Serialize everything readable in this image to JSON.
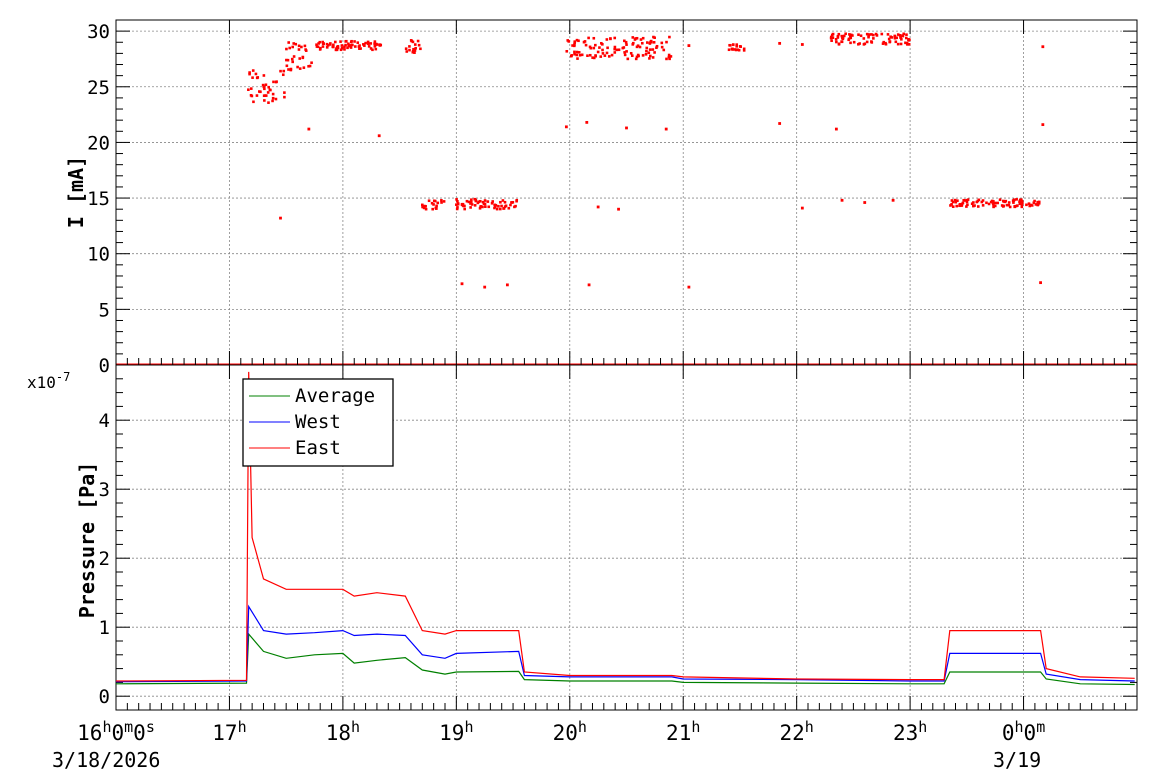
{
  "chart_data": [
    {
      "type": "scatter",
      "title": "",
      "ylabel": "I [mA]",
      "ylim": [
        0,
        31
      ],
      "yticks": [
        "0",
        "5",
        "10",
        "15",
        "20",
        "25",
        "30"
      ],
      "grid": true,
      "x_unit": "hours since 3/18/2026 16:00",
      "series": [
        {
          "color": "#ff0000",
          "description_clusters": [
            {
              "x_start": 17.15,
              "x_end": 17.5,
              "y_min": 23.5,
              "y_max": 26.5
            },
            {
              "x_start": 17.5,
              "x_end": 17.75,
              "y_min": 26.5,
              "y_max": 29
            },
            {
              "x_start": 17.75,
              "x_end": 18.35,
              "y_min": 28.3,
              "y_max": 29.1
            },
            {
              "x_start": 18.55,
              "x_end": 18.7,
              "y_min": 28.0,
              "y_max": 29.2
            },
            {
              "x_start": 18.7,
              "x_end": 18.9,
              "y_min": 14.0,
              "y_max": 14.8
            },
            {
              "x_start": 19.0,
              "x_end": 19.55,
              "y_min": 14.0,
              "y_max": 14.9
            },
            {
              "x_start": 19.95,
              "x_end": 20.9,
              "y_min": 27.5,
              "y_max": 29.5
            },
            {
              "x_start": 21.4,
              "x_end": 21.55,
              "y_min": 28.2,
              "y_max": 28.8
            },
            {
              "x_start": 22.3,
              "x_end": 23.0,
              "y_min": 28.8,
              "y_max": 29.8
            },
            {
              "x_start": 23.35,
              "x_end": 24.15,
              "y_min": 14.2,
              "y_max": 14.9
            }
          ],
          "isolated_points": [
            {
              "x": 17.45,
              "y": 13.2
            },
            {
              "x": 17.7,
              "y": 21.2
            },
            {
              "x": 18.32,
              "y": 20.6
            },
            {
              "x": 19.05,
              "y": 7.3
            },
            {
              "x": 19.25,
              "y": 7.0
            },
            {
              "x": 19.45,
              "y": 7.2
            },
            {
              "x": 19.97,
              "y": 21.4
            },
            {
              "x": 20.15,
              "y": 21.8
            },
            {
              "x": 20.17,
              "y": 7.2
            },
            {
              "x": 20.25,
              "y": 14.2
            },
            {
              "x": 20.43,
              "y": 14.0
            },
            {
              "x": 20.5,
              "y": 21.3
            },
            {
              "x": 20.85,
              "y": 21.2
            },
            {
              "x": 21.05,
              "y": 7.0
            },
            {
              "x": 21.05,
              "y": 28.7
            },
            {
              "x": 21.85,
              "y": 21.7
            },
            {
              "x": 21.85,
              "y": 28.9
            },
            {
              "x": 22.05,
              "y": 14.1
            },
            {
              "x": 22.05,
              "y": 28.8
            },
            {
              "x": 22.35,
              "y": 21.2
            },
            {
              "x": 22.4,
              "y": 14.8
            },
            {
              "x": 22.6,
              "y": 14.6
            },
            {
              "x": 22.85,
              "y": 14.8
            },
            {
              "x": 24.15,
              "y": 7.4
            },
            {
              "x": 24.17,
              "y": 21.6
            },
            {
              "x": 24.17,
              "y": 28.6
            }
          ],
          "baseline_y": 0
        }
      ]
    },
    {
      "type": "line",
      "title": "",
      "ylabel": "Pressure [Pa]",
      "y_exponent_label": "x10",
      "y_exponent_power": "-7",
      "ylim": [
        -0.2,
        4.8
      ],
      "yticks": [
        "0",
        "1",
        "2",
        "3",
        "4"
      ],
      "grid": true,
      "legend_position": "top-left",
      "x_unit": "hours since 3/18/2026 16:00",
      "series": [
        {
          "name": "Average",
          "color": "#008000",
          "x": [
            16.0,
            17.15,
            17.17,
            17.3,
            17.5,
            17.75,
            18.0,
            18.1,
            18.3,
            18.55,
            18.7,
            18.9,
            19.0,
            19.55,
            19.6,
            20.0,
            20.9,
            21.0,
            22.0,
            23.0,
            23.3,
            23.35,
            24.15,
            24.2,
            24.5,
            24.98
          ],
          "y": [
            0.18,
            0.19,
            0.9,
            0.65,
            0.55,
            0.6,
            0.62,
            0.48,
            0.52,
            0.56,
            0.38,
            0.32,
            0.35,
            0.36,
            0.24,
            0.22,
            0.22,
            0.2,
            0.19,
            0.18,
            0.18,
            0.35,
            0.35,
            0.25,
            0.18,
            0.17
          ]
        },
        {
          "name": "West",
          "color": "#0000ff",
          "x": [
            16.0,
            17.15,
            17.17,
            17.3,
            17.5,
            17.75,
            18.0,
            18.1,
            18.3,
            18.55,
            18.7,
            18.9,
            19.0,
            19.55,
            19.6,
            20.0,
            20.9,
            21.0,
            22.0,
            23.0,
            23.3,
            23.35,
            24.15,
            24.2,
            24.5,
            24.98
          ],
          "y": [
            0.21,
            0.22,
            1.3,
            0.95,
            0.9,
            0.92,
            0.95,
            0.88,
            0.9,
            0.88,
            0.6,
            0.55,
            0.62,
            0.65,
            0.3,
            0.28,
            0.28,
            0.25,
            0.24,
            0.22,
            0.22,
            0.62,
            0.62,
            0.32,
            0.24,
            0.22
          ]
        },
        {
          "name": "East",
          "color": "#ff0000",
          "x": [
            16.0,
            17.15,
            17.17,
            17.2,
            17.3,
            17.5,
            17.75,
            18.0,
            18.1,
            18.3,
            18.55,
            18.7,
            18.9,
            19.0,
            19.55,
            19.6,
            20.0,
            20.9,
            21.0,
            22.0,
            23.0,
            23.3,
            23.35,
            24.15,
            24.2,
            24.5,
            24.98
          ],
          "y": [
            0.22,
            0.23,
            4.7,
            2.3,
            1.7,
            1.55,
            1.55,
            1.55,
            1.45,
            1.5,
            1.45,
            0.95,
            0.9,
            0.95,
            0.95,
            0.35,
            0.3,
            0.3,
            0.28,
            0.25,
            0.24,
            0.24,
            0.95,
            0.95,
            0.4,
            0.28,
            0.26
          ]
        }
      ]
    }
  ],
  "xaxis": {
    "xlim": [
      16.0,
      25.0
    ],
    "ticks": [
      {
        "x": 16,
        "base": "16",
        "sup1": "h",
        "mid1": "0",
        "sup2": "m",
        "mid2": "0",
        "sup3": "s"
      },
      {
        "x": 17,
        "base": "17",
        "sup1": "h"
      },
      {
        "x": 18,
        "base": "18",
        "sup1": "h"
      },
      {
        "x": 19,
        "base": "19",
        "sup1": "h"
      },
      {
        "x": 20,
        "base": "20",
        "sup1": "h"
      },
      {
        "x": 21,
        "base": "21",
        "sup1": "h"
      },
      {
        "x": 22,
        "base": "22",
        "sup1": "h"
      },
      {
        "x": 23,
        "base": "23",
        "sup1": "h"
      },
      {
        "x": 24,
        "base": "0",
        "sup1": "h",
        "mid1": "0",
        "sup2": "m"
      }
    ],
    "date_start": "3/18/2026",
    "date_next": "3/19"
  }
}
